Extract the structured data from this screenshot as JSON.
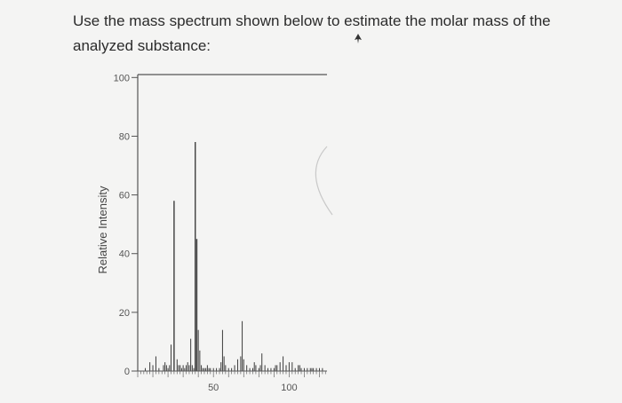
{
  "question": {
    "text": "Use the mass spectrum shown below to estimate the molar mass of the analyzed substance:"
  },
  "chart_data": {
    "type": "bar",
    "title": "",
    "xlabel": "",
    "ylabel": "Relative Intensity",
    "xlim": [
      0,
      125
    ],
    "ylim": [
      0,
      100
    ],
    "xticks": [
      50,
      100
    ],
    "yticks": [
      0,
      20,
      40,
      60,
      80,
      100
    ],
    "grid": false,
    "x": [
      5,
      8,
      10,
      12,
      14,
      17,
      18,
      19,
      20,
      21,
      22,
      24,
      26,
      27,
      28,
      29,
      30,
      31,
      32,
      33,
      34,
      35,
      36,
      37,
      38,
      39,
      40,
      41,
      42,
      43,
      44,
      45,
      46,
      47,
      48,
      50,
      52,
      54,
      55,
      56,
      57,
      58,
      60,
      62,
      64,
      66,
      68,
      69,
      70,
      72,
      74,
      76,
      77,
      78,
      80,
      81,
      82,
      84,
      86,
      88,
      90,
      91,
      92,
      94,
      96,
      98,
      100,
      102,
      104,
      106,
      107,
      108,
      110,
      112,
      114,
      115,
      116,
      118,
      120,
      122
    ],
    "values": [
      1,
      3,
      2,
      5,
      1,
      2,
      3,
      2,
      1,
      2,
      9,
      58,
      4,
      2,
      2,
      1,
      2,
      1,
      2,
      3,
      2,
      11,
      2,
      1,
      78,
      45,
      14,
      7,
      2,
      1,
      1,
      1,
      2,
      1,
      1,
      1,
      1,
      1,
      3,
      14,
      5,
      2,
      1,
      1,
      2,
      4,
      5,
      17,
      4,
      2,
      1,
      1,
      3,
      2,
      1,
      2,
      6,
      2,
      1,
      1,
      1,
      2,
      2,
      3,
      5,
      2,
      3,
      3,
      1,
      2,
      2,
      1,
      1,
      1,
      1,
      1,
      1,
      1,
      1,
      1
    ]
  }
}
